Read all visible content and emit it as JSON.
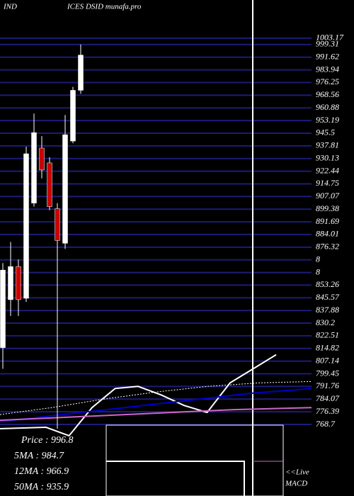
{
  "chart_data": {
    "type": "candlestick",
    "title_parts": [
      "IND",
      "ICES DSID munafa.pro"
    ],
    "ylim": [
      765.0,
      1004.0
    ],
    "yticks": [
      {
        "value": 1003.17,
        "label": "1003.17"
      },
      999.31,
      991.62,
      983.94,
      976.25,
      968.56,
      960.88,
      953.19,
      945.5,
      937.81,
      930.13,
      922.44,
      914.75,
      907.07,
      899.38,
      891.69,
      884.01,
      876.32,
      {
        "value": 868.63,
        "label": "8"
      },
      {
        "value": 860.94,
        "label": "8"
      },
      853.26,
      845.57,
      837.88,
      830.2,
      822.51,
      814.82,
      807.14,
      799.45,
      791.76,
      784.07,
      776.39,
      768.7
    ],
    "candles": {
      "open": [
        815.34,
        844.44,
        864.55,
        845.29,
        903.06,
        936.44,
        927.45,
        899.64,
        878.67,
        940.72,
        971.53
      ],
      "high": [
        866.69,
        879.53,
        868.83,
        937.29,
        957.4,
        943.72,
        930.87,
        903.06,
        956.55,
        973.67,
        999.34
      ],
      "low": [
        802.5,
        834.6,
        834.6,
        843.15,
        900.92,
        918.04,
        898.78,
        766.13,
        875.25,
        939.43,
        969.39
      ],
      "close": [
        862.41,
        864.55,
        844.44,
        933.01,
        945.86,
        923.17,
        900.92,
        880.38,
        944.57,
        971.53,
        992.92
      ],
      "up_color": "#ffffff",
      "down_color": "#cc0000"
    },
    "lines": [
      {
        "color": "#ffffff",
        "dashed": false,
        "values": [
          766.13,
          766.56,
          766.99,
          761.85,
          778.97,
          790.52,
          791.81,
          786.67,
          780.25,
          775.97,
          793.95,
          802.5,
          811.06
        ]
      },
      {
        "color": "#ffffff",
        "dashed": true,
        "values": [
          774.69,
          778.97,
          784.1,
          788.38,
          791.81,
          793.95,
          794.8
        ]
      },
      {
        "color": "#0000cc",
        "dashed": false,
        "values": [
          770.41,
          774.69,
          778.97,
          783.25,
          787.53,
          790.52
        ]
      },
      {
        "color": "#cc66cc",
        "dashed": false,
        "values": [
          771.27,
          773.41,
          775.55,
          777.69,
          778.97
        ]
      }
    ],
    "grid": true,
    "grid_color": "#1c1c78",
    "info": [
      "Price  :  996.8",
      "5MA : 984.7",
      "12MA : 966.9",
      "50MA : 935.9"
    ],
    "macd_label": [
      "<<Live",
      "MACD"
    ]
  }
}
